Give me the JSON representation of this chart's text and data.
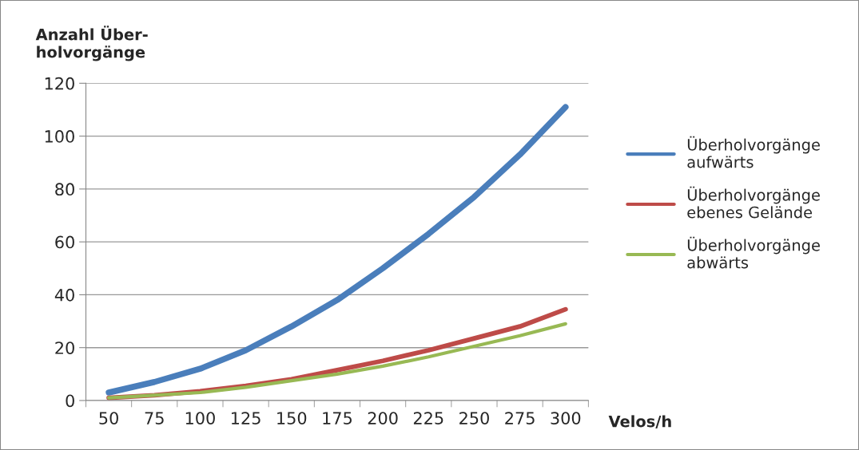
{
  "chart_data": {
    "type": "line",
    "ylabel": "Anzahl Über-\nholvorgänge",
    "xlabel": "Velos/h",
    "categories": [
      "50",
      "75",
      "100",
      "125",
      "150",
      "175",
      "200",
      "225",
      "250",
      "275",
      "300"
    ],
    "series": [
      {
        "name": "Überholvorgänge\naufwärts",
        "color": "#4a7ebb",
        "values": [
          3,
          7,
          12,
          19,
          28,
          38,
          50,
          63,
          77,
          93,
          111
        ]
      },
      {
        "name": "Überholvorgänge\nebenes Gelände",
        "color": "#be4b48",
        "values": [
          1,
          2,
          3.5,
          5.5,
          8,
          11.5,
          15,
          19,
          23.5,
          28,
          34.5
        ]
      },
      {
        "name": "Überholvorgänge\nabwärts",
        "color": "#98b954",
        "values": [
          1,
          2,
          3,
          5,
          7.5,
          10,
          13,
          16.5,
          20.5,
          24.5,
          29
        ]
      }
    ],
    "ylim": [
      0,
      120
    ],
    "yticks": [
      0,
      20,
      40,
      60,
      80,
      100,
      120
    ],
    "grid": "y",
    "legend": "right",
    "marker": "none",
    "line_style": "solid"
  }
}
